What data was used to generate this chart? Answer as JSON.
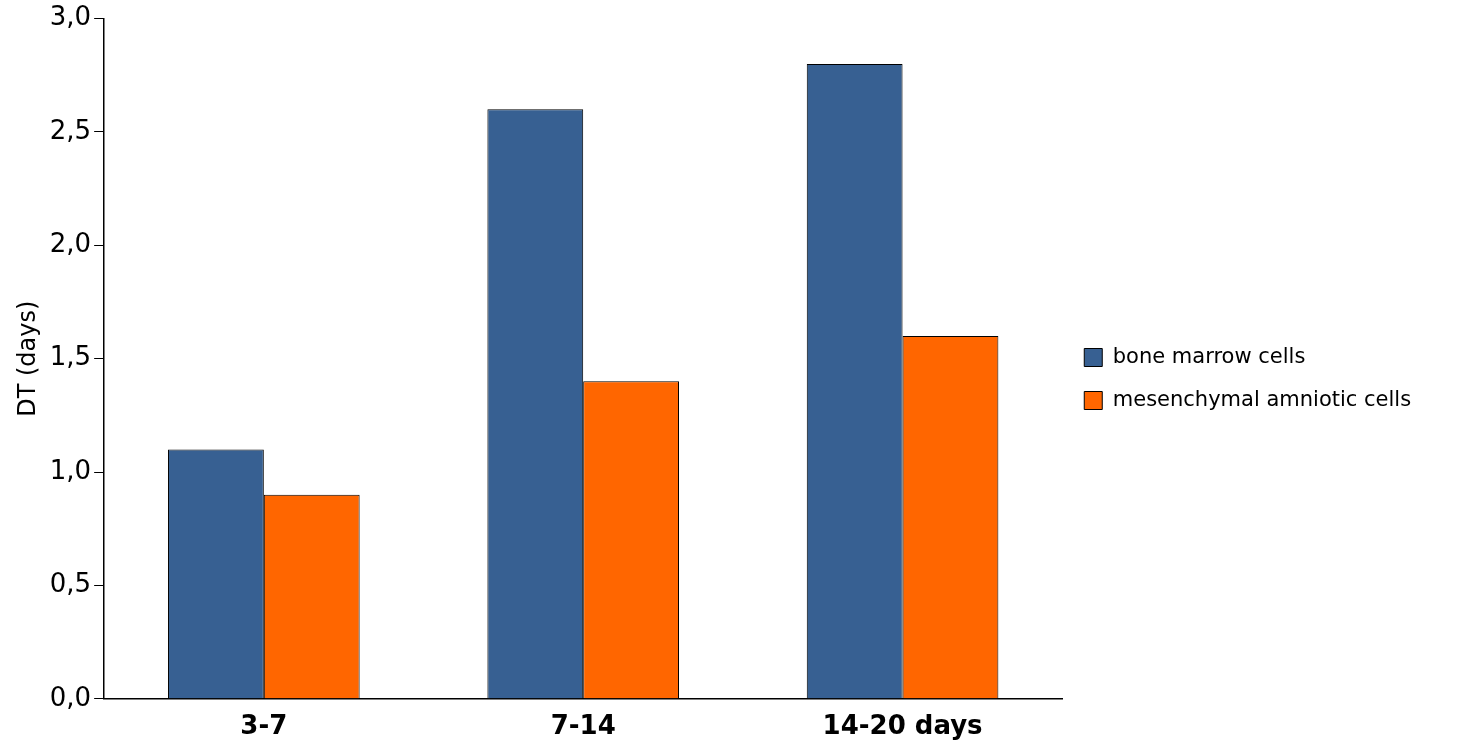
{
  "chart_data": {
    "type": "bar",
    "ylabel": "DT (days)",
    "categories": [
      "3-7",
      "7-14",
      "14-20 days"
    ],
    "series": [
      {
        "name": "bone marrow cells",
        "color": "#376092",
        "values": [
          1.1,
          2.6,
          2.8
        ]
      },
      {
        "name": "mesenchymal amniotic cells",
        "color": "#ff6600",
        "values": [
          0.9,
          1.4,
          1.6
        ]
      }
    ],
    "ylim": [
      0,
      3
    ],
    "yticks": [
      {
        "value": 0,
        "label": "0,0"
      },
      {
        "value": 0.5,
        "label": "0,5"
      },
      {
        "value": 1,
        "label": "1,0"
      },
      {
        "value": 1.5,
        "label": "1,5"
      },
      {
        "value": 2,
        "label": "2,0"
      },
      {
        "value": 2.5,
        "label": "2,5"
      },
      {
        "value": 3,
        "label": "3,0"
      }
    ],
    "grid": false,
    "legend": "right"
  }
}
